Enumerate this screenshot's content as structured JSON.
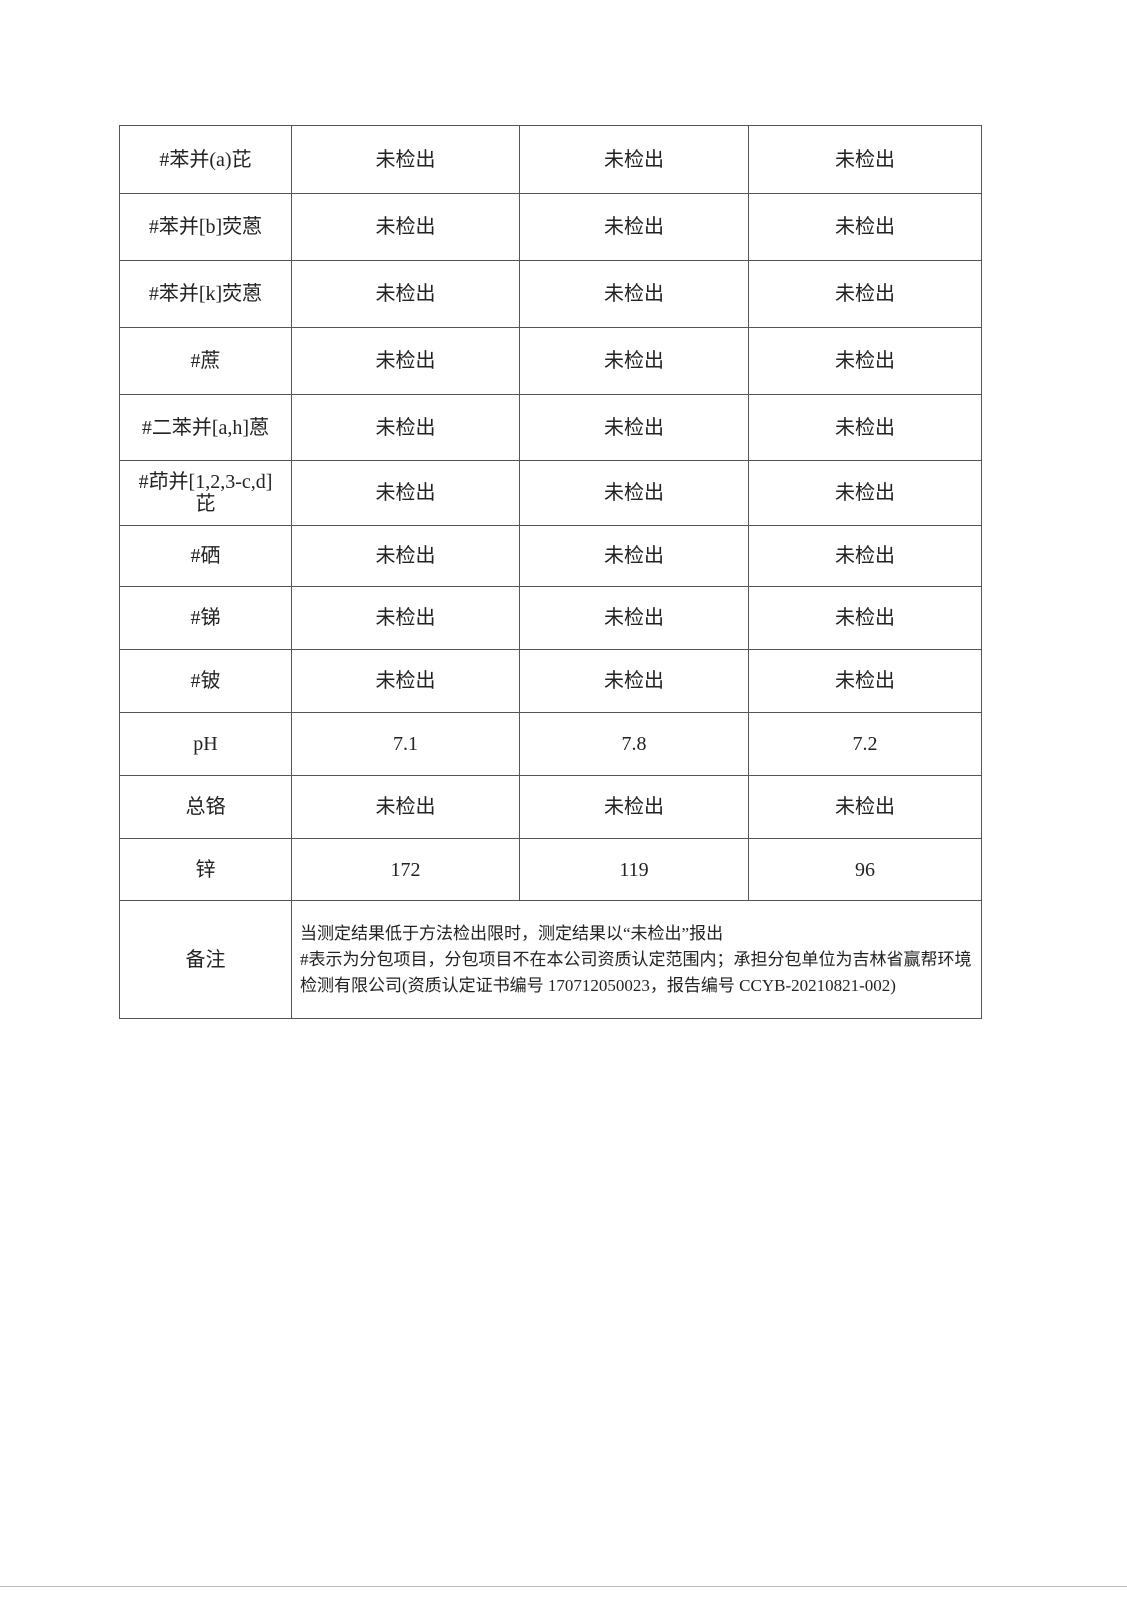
{
  "rows": [
    {
      "item": "#苯并(a)芘",
      "values": [
        "未检出",
        "未检出",
        "未检出"
      ]
    },
    {
      "item": "#苯并[b]荧蒽",
      "values": [
        "未检出",
        "未检出",
        "未检出"
      ]
    },
    {
      "item": "#苯并[k]荧蒽",
      "values": [
        "未检出",
        "未检出",
        "未检出"
      ]
    },
    {
      "item": "#蔗",
      "values": [
        "未检出",
        "未检出",
        "未检出"
      ]
    },
    {
      "item": "#二苯并[a,h]蒽",
      "values": [
        "未检出",
        "未检出",
        "未检出"
      ]
    },
    {
      "item": "#茚并[1,2,3-c,d]芘",
      "values": [
        "未检出",
        "未检出",
        "未检出"
      ]
    },
    {
      "item": "#硒",
      "values": [
        "未检出",
        "未检出",
        "未检出"
      ]
    },
    {
      "item": "#锑",
      "values": [
        "未检出",
        "未检出",
        "未检出"
      ]
    },
    {
      "item": "#铍",
      "values": [
        "未检出",
        "未检出",
        "未检出"
      ]
    },
    {
      "item": "pH",
      "values": [
        "7.1",
        "7.8",
        "7.2"
      ]
    },
    {
      "item": "总铬",
      "values": [
        "未检出",
        "未检出",
        "未检出"
      ]
    },
    {
      "item": "锌",
      "values": [
        "172",
        "119",
        "96"
      ]
    }
  ],
  "remarks": {
    "label": "备注",
    "line1": "当测定结果低于方法检出限时，测定结果以“未检出”报出",
    "line2": "#表示为分包项目，分包项目不在本公司资质认定范围内；承担分包单位为吉林省赢帮环境检测有限公司(资质认定证书编号 170712050023，报告编号 CCYB-20210821-002)"
  }
}
